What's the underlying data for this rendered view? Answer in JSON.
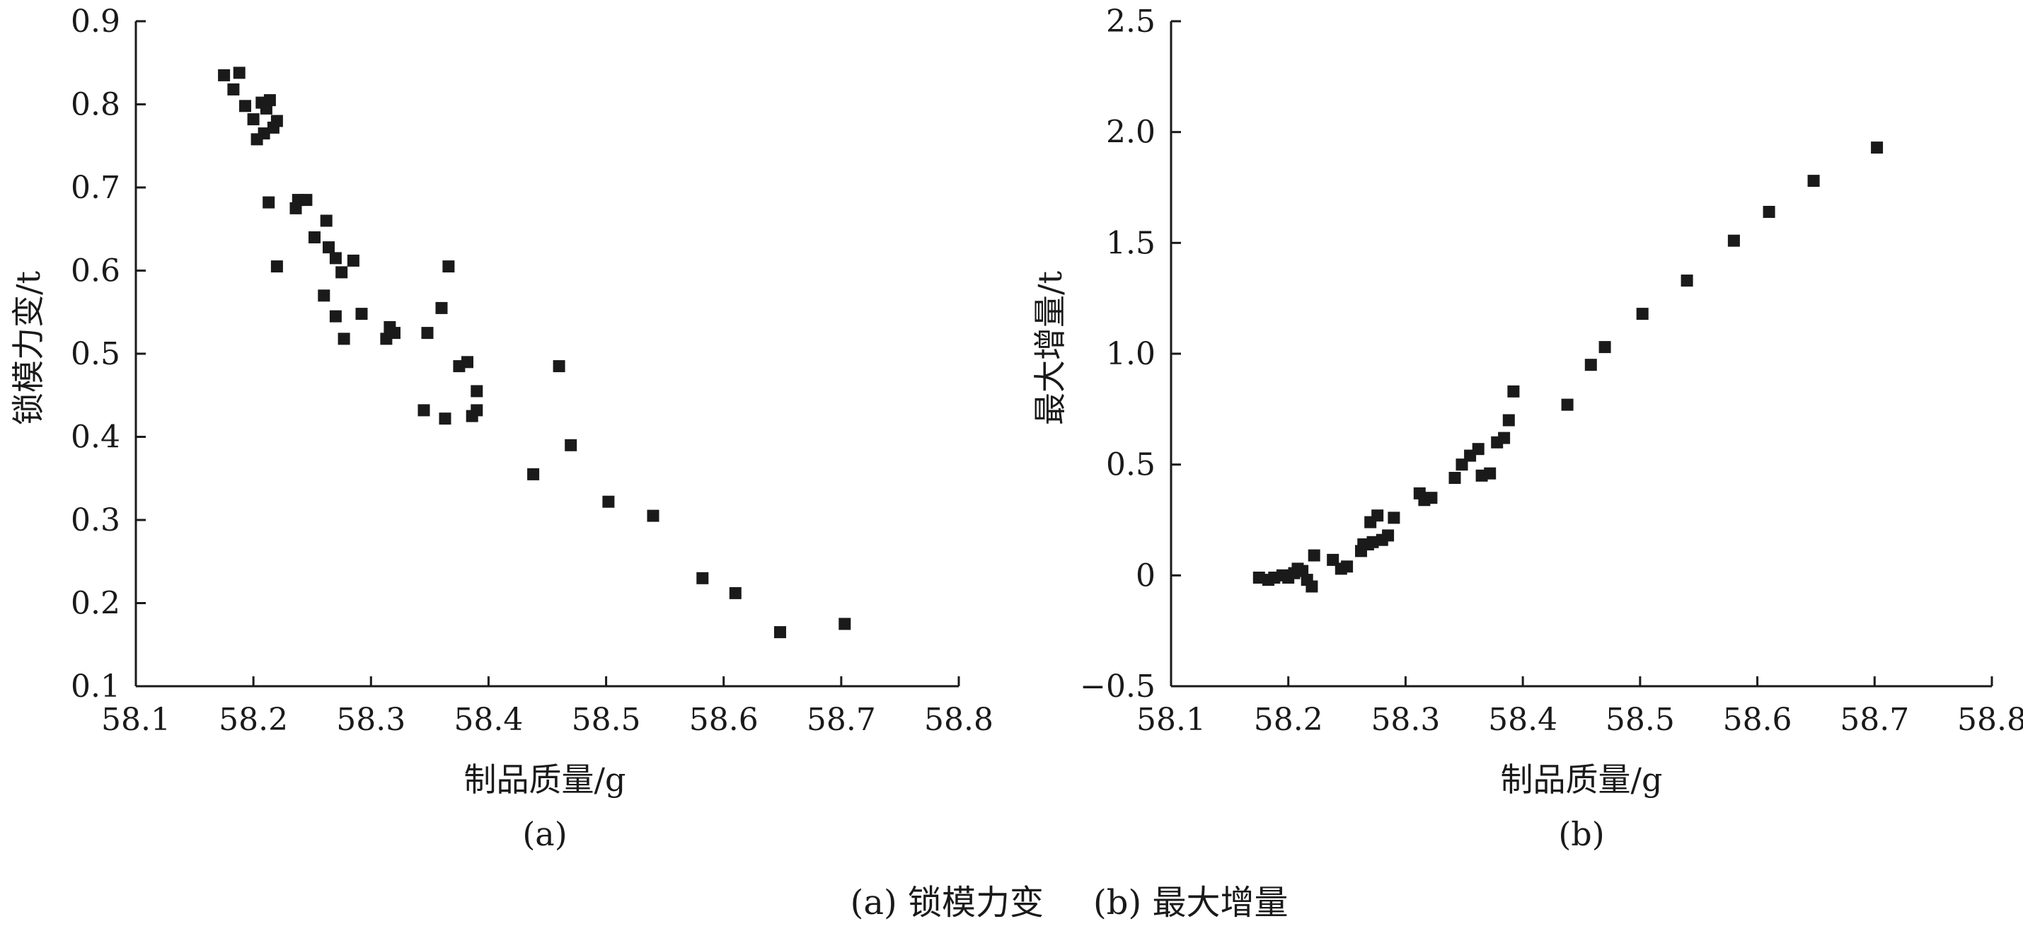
{
  "figure": {
    "caption_a": "(a) 锁模力变",
    "caption_b": "(b) 最大增量"
  },
  "chart_data": [
    {
      "type": "scatter",
      "panel_label": "(a)",
      "title": "",
      "xlabel": "制品质量/g",
      "ylabel": "锁模力变/t",
      "xlim": [
        58.1,
        58.8
      ],
      "ylim": [
        0.1,
        0.9
      ],
      "xticks": [
        58.1,
        58.2,
        58.3,
        58.4,
        58.5,
        58.6,
        58.7,
        58.8
      ],
      "yticks": [
        0.1,
        0.2,
        0.3,
        0.4,
        0.5,
        0.6,
        0.7,
        0.8,
        0.9
      ],
      "xtick_labels": [
        "58.1",
        "58.2",
        "58.3",
        "58.4",
        "58.5",
        "58.6",
        "58.7",
        "58.8"
      ],
      "ytick_labels": [
        "0.1",
        "0.2",
        "0.3",
        "0.4",
        "0.5",
        "0.6",
        "0.7",
        "0.8",
        "0.9"
      ],
      "grid": false,
      "marker": "square",
      "color": "#1a1a1a",
      "points": [
        [
          58.175,
          0.835
        ],
        [
          58.183,
          0.818
        ],
        [
          58.188,
          0.838
        ],
        [
          58.193,
          0.798
        ],
        [
          58.2,
          0.782
        ],
        [
          58.203,
          0.758
        ],
        [
          58.207,
          0.802
        ],
        [
          58.209,
          0.765
        ],
        [
          58.211,
          0.795
        ],
        [
          58.214,
          0.805
        ],
        [
          58.217,
          0.772
        ],
        [
          58.22,
          0.78
        ],
        [
          58.213,
          0.682
        ],
        [
          58.22,
          0.605
        ],
        [
          58.236,
          0.675
        ],
        [
          58.238,
          0.685
        ],
        [
          58.245,
          0.685
        ],
        [
          58.252,
          0.64
        ],
        [
          58.26,
          0.57
        ],
        [
          58.262,
          0.66
        ],
        [
          58.264,
          0.628
        ],
        [
          58.27,
          0.615
        ],
        [
          58.27,
          0.545
        ],
        [
          58.275,
          0.598
        ],
        [
          58.277,
          0.518
        ],
        [
          58.285,
          0.612
        ],
        [
          58.292,
          0.548
        ],
        [
          58.313,
          0.518
        ],
        [
          58.316,
          0.532
        ],
        [
          58.32,
          0.525
        ],
        [
          58.345,
          0.432
        ],
        [
          58.348,
          0.525
        ],
        [
          58.36,
          0.555
        ],
        [
          58.363,
          0.422
        ],
        [
          58.366,
          0.605
        ],
        [
          58.375,
          0.485
        ],
        [
          58.382,
          0.49
        ],
        [
          58.386,
          0.425
        ],
        [
          58.39,
          0.455
        ],
        [
          58.39,
          0.432
        ],
        [
          58.438,
          0.355
        ],
        [
          58.46,
          0.485
        ],
        [
          58.47,
          0.39
        ],
        [
          58.502,
          0.322
        ],
        [
          58.54,
          0.305
        ],
        [
          58.582,
          0.23
        ],
        [
          58.61,
          0.212
        ],
        [
          58.648,
          0.165
        ],
        [
          58.703,
          0.175
        ]
      ]
    },
    {
      "type": "scatter",
      "panel_label": "(b)",
      "title": "",
      "xlabel": "制品质量/g",
      "ylabel": "最大增量/t",
      "xlim": [
        58.1,
        58.8
      ],
      "ylim": [
        -0.5,
        2.5
      ],
      "xticks": [
        58.1,
        58.2,
        58.3,
        58.4,
        58.5,
        58.6,
        58.7,
        58.8
      ],
      "yticks": [
        -0.5,
        0,
        0.5,
        1.0,
        1.5,
        2.0,
        2.5
      ],
      "xtick_labels": [
        "58.1",
        "58.2",
        "58.3",
        "58.4",
        "58.5",
        "58.6",
        "58.7",
        "58.8"
      ],
      "ytick_labels": [
        "−0.5",
        "0",
        "0.5",
        "1.0",
        "1.5",
        "2.0",
        "2.5"
      ],
      "grid": false,
      "marker": "square",
      "color": "#1a1a1a",
      "points": [
        [
          58.175,
          -0.01
        ],
        [
          58.183,
          -0.02
        ],
        [
          58.188,
          -0.01
        ],
        [
          58.195,
          0.0
        ],
        [
          58.2,
          -0.01
        ],
        [
          58.205,
          0.01
        ],
        [
          58.208,
          0.03
        ],
        [
          58.212,
          0.02
        ],
        [
          58.216,
          -0.02
        ],
        [
          58.22,
          -0.05
        ],
        [
          58.222,
          0.09
        ],
        [
          58.238,
          0.07
        ],
        [
          58.245,
          0.03
        ],
        [
          58.25,
          0.04
        ],
        [
          58.262,
          0.11
        ],
        [
          58.264,
          0.14
        ],
        [
          58.268,
          0.14
        ],
        [
          58.27,
          0.24
        ],
        [
          58.272,
          0.15
        ],
        [
          58.276,
          0.27
        ],
        [
          58.28,
          0.16
        ],
        [
          58.285,
          0.18
        ],
        [
          58.29,
          0.26
        ],
        [
          58.312,
          0.37
        ],
        [
          58.316,
          0.34
        ],
        [
          58.322,
          0.35
        ],
        [
          58.342,
          0.44
        ],
        [
          58.348,
          0.5
        ],
        [
          58.355,
          0.54
        ],
        [
          58.362,
          0.57
        ],
        [
          58.365,
          0.45
        ],
        [
          58.372,
          0.46
        ],
        [
          58.378,
          0.6
        ],
        [
          58.384,
          0.62
        ],
        [
          58.388,
          0.7
        ],
        [
          58.392,
          0.83
        ],
        [
          58.438,
          0.77
        ],
        [
          58.458,
          0.95
        ],
        [
          58.47,
          1.03
        ],
        [
          58.502,
          1.18
        ],
        [
          58.54,
          1.33
        ],
        [
          58.58,
          1.51
        ],
        [
          58.61,
          1.64
        ],
        [
          58.648,
          1.78
        ],
        [
          58.702,
          1.93
        ]
      ]
    }
  ]
}
